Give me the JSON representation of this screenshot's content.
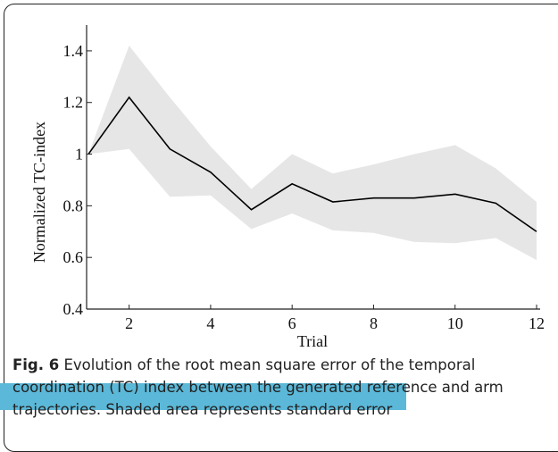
{
  "chart_data": {
    "type": "line",
    "ylabel": "Normalized TC-index",
    "xlabel": "Trial",
    "x": [
      1,
      2,
      3,
      4,
      5,
      6,
      7,
      8,
      9,
      10,
      11,
      12
    ],
    "values": [
      1,
      1.22,
      1.02,
      0.93,
      0.785,
      0.885,
      0.815,
      0.83,
      0.83,
      0.845,
      0.81,
      0.7
    ],
    "upper": [
      1,
      1.42,
      1.22,
      1.03,
      0.865,
      1.0,
      0.925,
      0.96,
      1.0,
      1.035,
      0.945,
      0.815
    ],
    "lower": [
      1,
      1.02,
      0.835,
      0.84,
      0.71,
      0.77,
      0.705,
      0.695,
      0.66,
      0.655,
      0.675,
      0.59
    ],
    "color": "#000000",
    "band_color": "#e6e6e6",
    "xlim": [
      1,
      12
    ],
    "xticks": [
      2,
      4,
      6,
      8,
      10,
      12
    ],
    "ylim": [
      0.4,
      1.5
    ],
    "yticks": [
      0.4,
      0.6,
      0.8,
      1,
      1.2,
      1.4
    ]
  },
  "caption": {
    "label": "Fig. 6",
    "text": "Evolution of the root mean square error of the temporal coordination (TC) index between the generated reference and arm trajectories. Shaded area represents standard error"
  }
}
